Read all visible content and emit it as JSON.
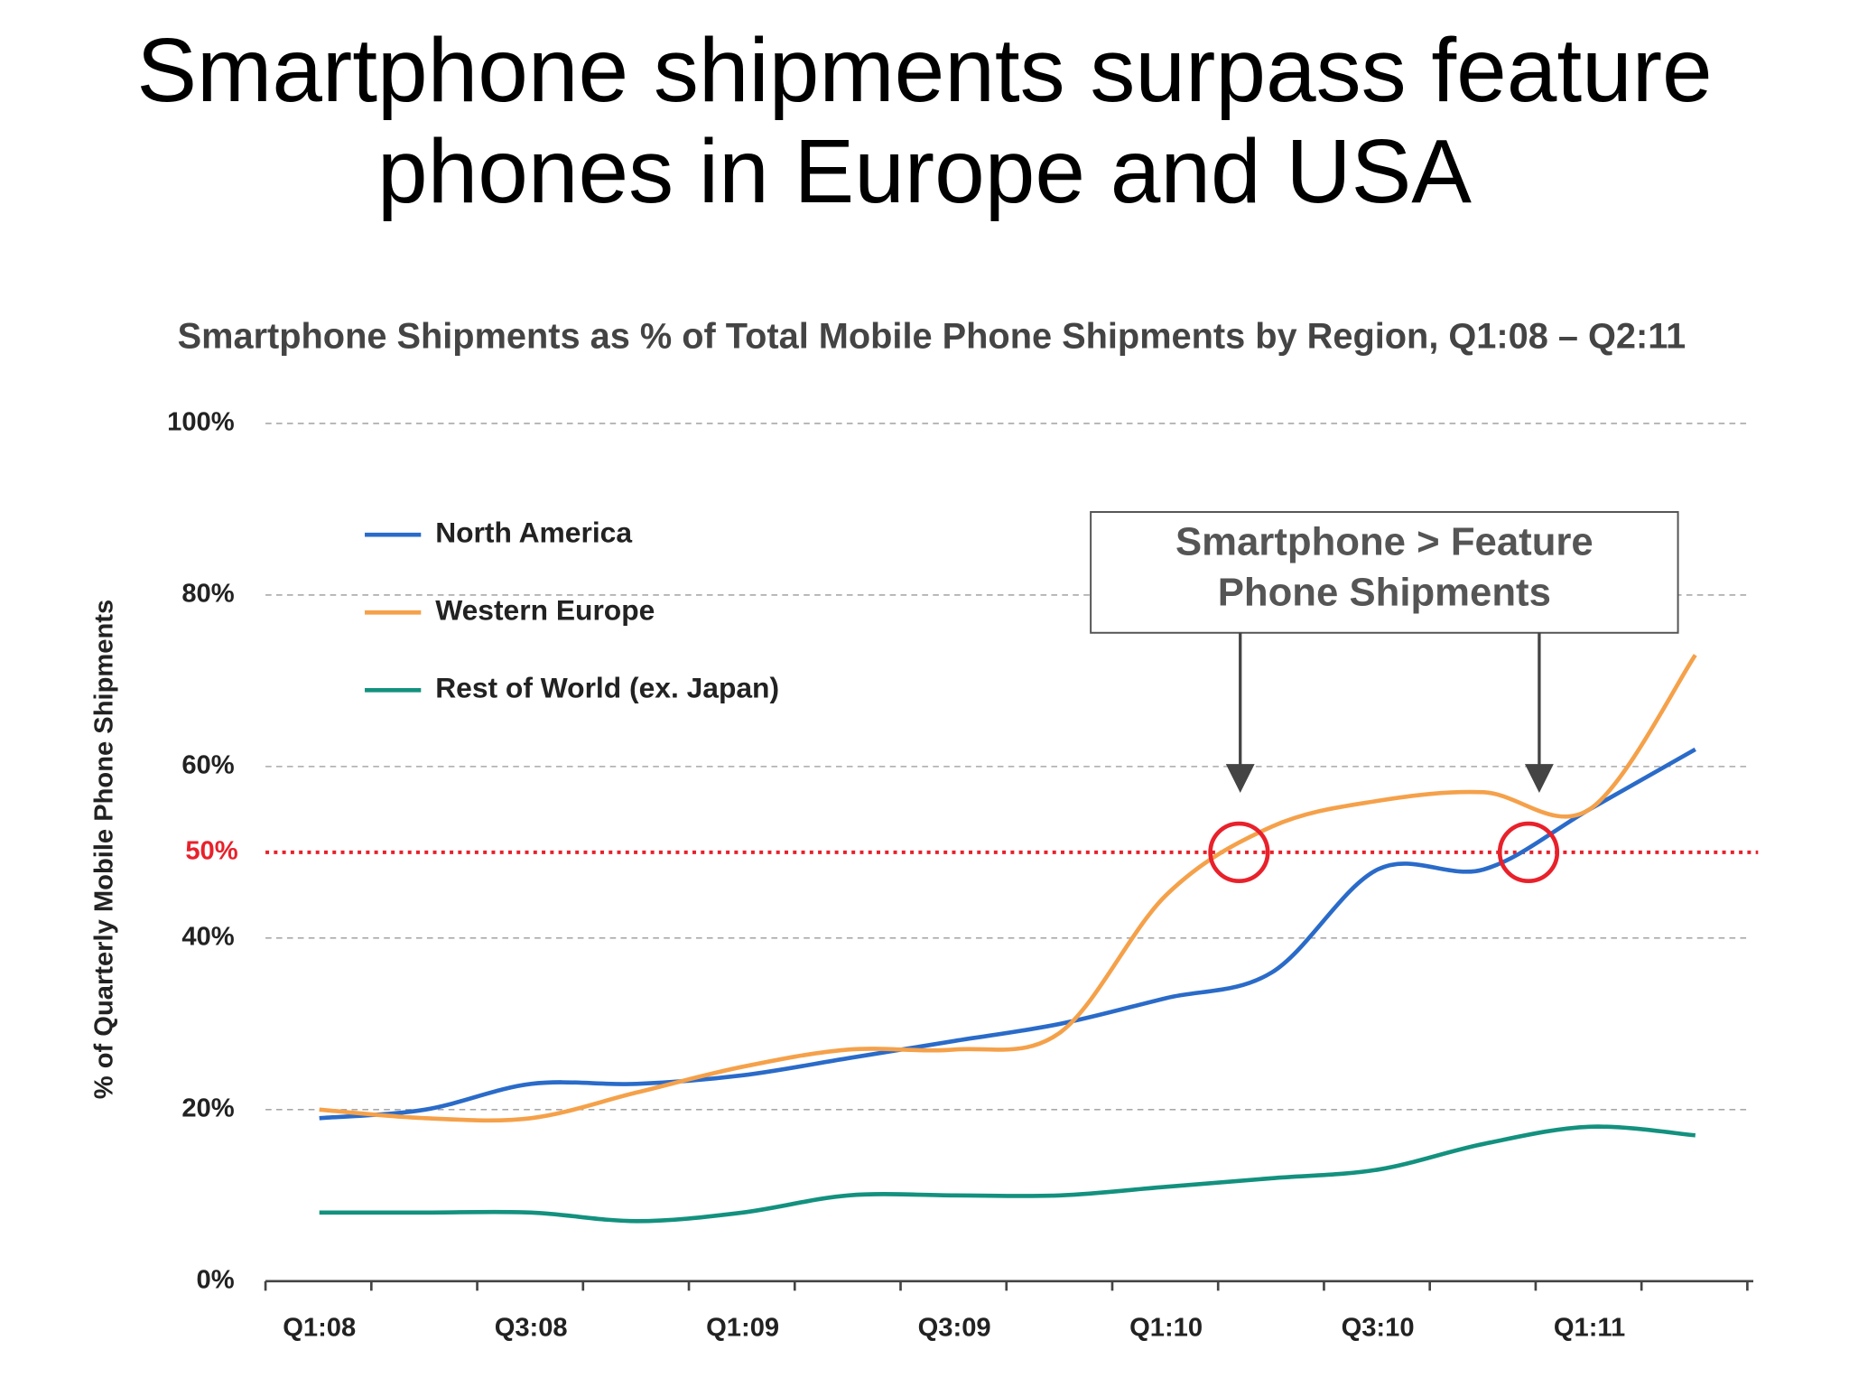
{
  "page_title": "Smartphone shipments surpass feature phones in Europe and USA",
  "chart_data": {
    "type": "line",
    "title": "Smartphone Shipments as % of Total Mobile Phone Shipments by Region, Q1:08 – Q2:11",
    "y_label": "% of Quarterly Mobile Phone Shipments",
    "categories": [
      "Q1:08",
      null,
      "Q3:08",
      null,
      "Q1:09",
      null,
      "Q3:09",
      null,
      "Q1:10",
      null,
      "Q3:10",
      null,
      "Q1:11",
      null
    ],
    "series": [
      {
        "name": "North America",
        "color": "#2a6bc9",
        "values": [
          19,
          20,
          23,
          23,
          24,
          26,
          28,
          30,
          33,
          36,
          48,
          48,
          55,
          62
        ]
      },
      {
        "name": "Western Europe",
        "color": "#f5a14a",
        "values": [
          20,
          19,
          19,
          22,
          25,
          27,
          27,
          29,
          45,
          53,
          56,
          57,
          55,
          73
        ]
      },
      {
        "name": "Rest of World (ex. Japan)",
        "color": "#13917f",
        "values": [
          8,
          8,
          8,
          7,
          8,
          10,
          10,
          10,
          11,
          12,
          13,
          16,
          18,
          17
        ]
      }
    ],
    "ylim": [
      0,
      100
    ],
    "yticks": [
      {
        "value": 0,
        "label": "0%"
      },
      {
        "value": 20,
        "label": "20%"
      },
      {
        "value": 40,
        "label": "40%"
      },
      {
        "value": 60,
        "label": "60%"
      },
      {
        "value": 80,
        "label": "80%"
      },
      {
        "value": 100,
        "label": "100%"
      }
    ],
    "grid": true,
    "reference_line": {
      "value": 50,
      "label": "50%",
      "color": "#e8212b"
    },
    "annotation": "Smartphone > Feature Phone Shipments"
  }
}
